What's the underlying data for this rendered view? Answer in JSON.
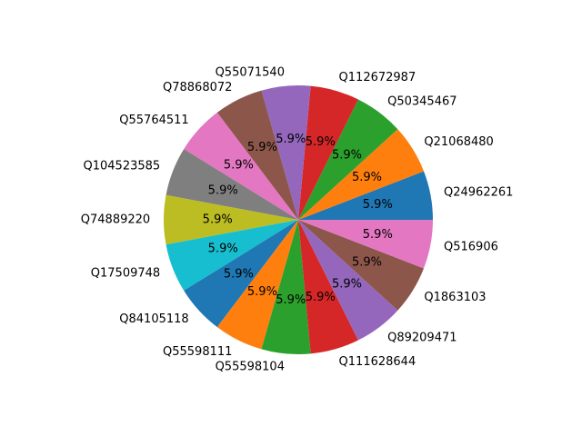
{
  "chart_data": {
    "type": "pie",
    "title": "",
    "start_angle_deg": 0,
    "direction": "counterclockwise",
    "categories": [
      "Q24962261",
      "Q21068480",
      "Q50345467",
      "Q112672987",
      "Q55071540",
      "Q78868072",
      "Q55764511",
      "Q104523585",
      "Q74889220",
      "Q17509748",
      "Q84105118",
      "Q55598111",
      "Q55598104",
      "Q111628644",
      "Q89209471",
      "Q1863103",
      "Q516906"
    ],
    "values": [
      1,
      1,
      1,
      1,
      1,
      1,
      1,
      1,
      1,
      1,
      1,
      1,
      1,
      1,
      1,
      1,
      1
    ],
    "percent_labels": [
      "5.9%",
      "5.9%",
      "5.9%",
      "5.9%",
      "5.9%",
      "5.9%",
      "5.9%",
      "5.9%",
      "5.9%",
      "5.9%",
      "5.9%",
      "5.9%",
      "5.9%",
      "5.9%",
      "5.9%",
      "5.9%",
      "5.9%"
    ],
    "colors": [
      "#1f77b4",
      "#ff7f0e",
      "#2ca02c",
      "#d62728",
      "#9467bd",
      "#8c564b",
      "#e377c2",
      "#7f7f7f",
      "#bcbd22",
      "#17becf",
      "#1f77b4",
      "#ff7f0e",
      "#2ca02c",
      "#d62728",
      "#9467bd",
      "#8c564b",
      "#e377c2"
    ]
  }
}
